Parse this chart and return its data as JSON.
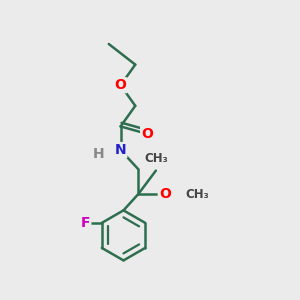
{
  "background_color": "#ebebeb",
  "bond_color": "#2d6e4e",
  "bond_width": 1.8,
  "atom_colors": {
    "O": "#ff0000",
    "N": "#2222cc",
    "F": "#cc00bb",
    "H": "#888888"
  },
  "font_size": 10,
  "fig_size": [
    3.0,
    3.0
  ],
  "dpi": 100
}
